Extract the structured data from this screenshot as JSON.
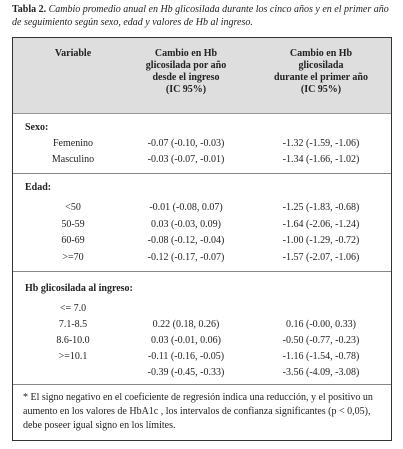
{
  "caption": {
    "label": "Tabla 2.",
    "text": "Cambio promedio anual en Hb glicosilada durante los cinco años y en el primer año de seguimiento según sexo, edad y valores de Hb al ingreso."
  },
  "table": {
    "headers": [
      [
        "Variable"
      ],
      [
        "Cambio en Hb",
        "glicosilada por año",
        "desde el ingreso",
        "(IC 95%)"
      ],
      [
        "Cambio en Hb",
        "glicosilada",
        "durante el primer año",
        "(IC 95%)"
      ]
    ],
    "sections": [
      {
        "title": "Sexo:",
        "rows": [
          [
            "Femenino",
            "-0.07 (-0.10, -0.03)",
            "-1.32 (-1.59, -1.06)"
          ],
          [
            "Masculino",
            "-0.03 (-0.07, -0.01)",
            "-1.34 (-1.66, -1.02)"
          ]
        ]
      },
      {
        "title": "Edad:",
        "rows": [
          [
            "<50",
            "-0.01 (-0.08, 0.07)",
            "-1.25 (-1.83, -0.68)"
          ],
          [
            "50-59",
            "0.03 (-0.03, 0.09)",
            "-1.64 (-2.06, -1.24)"
          ],
          [
            "60-69",
            "-0.08 (-0.12, -0.04)",
            "-1.00 (-1.29, -0.72)"
          ],
          [
            ">=70",
            "-0.12 (-0.17, -0.07)",
            "-1.57 (-2.07, -1.06)"
          ]
        ]
      },
      {
        "title": "Hb glicosilada al ingreso:",
        "rows": [
          [
            "<= 7.0",
            null,
            null
          ],
          [
            "7.1-8.5",
            "0.22 (0.18, 0.26)",
            "0.16 (-0.00, 0.33)"
          ],
          [
            "8.6-10.0",
            "0.03 (-0.01, 0.06)",
            "-0.50 (-0.77, -0.23)"
          ],
          [
            ">=10.1",
            "-0.11 (-0.16, -0.05)",
            "-1.16 (-1.54, -0.78)"
          ],
          [
            null,
            "-0.39 (-0.45, -0.33)",
            "-3.56 (-4.09, -3.08)"
          ]
        ]
      }
    ]
  },
  "footnote": [
    "* El signo negativo en el coeficiente de regresión indica una reducción, y el positivo un",
    "aumento en los valores de HbA1c , los intervalos de confianza significantes (p < 0,05),",
    "debe poseer igual signo en los límites."
  ]
}
